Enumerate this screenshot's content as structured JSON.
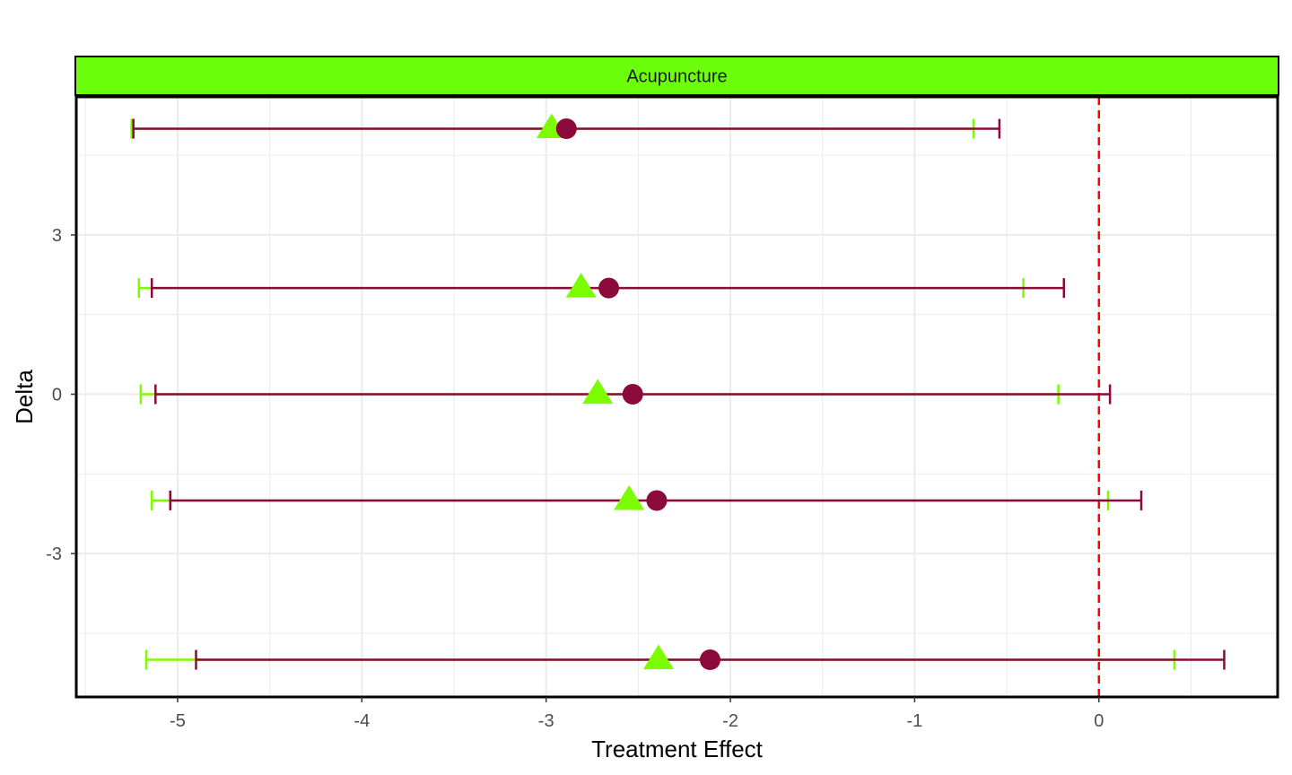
{
  "chart_data": {
    "type": "scatter",
    "panel_title": "Acupuncture",
    "xlabel": "Treatment Effect",
    "ylabel": "Delta",
    "xlim": [
      -5.55,
      0.97
    ],
    "ylim": [
      -5.7,
      5.6
    ],
    "x_ticks": [
      -5,
      -4,
      -3,
      -2,
      -1,
      0
    ],
    "x_tick_labels": [
      "-5",
      "-4",
      "-3",
      "-2",
      "-1",
      "0"
    ],
    "y_ticks": [
      -3,
      0,
      3
    ],
    "y_tick_labels": [
      "-3",
      "0",
      "3"
    ],
    "grid": true,
    "reference_line": {
      "x": 0,
      "style": "dashed",
      "color": "#ff0000"
    },
    "strip_color": "#6cff0c",
    "series": [
      {
        "marker": "triangle",
        "color": "#7cfc00",
        "points": [
          {
            "y": 5,
            "x": -2.97,
            "lower": -5.25,
            "upper": -0.68
          },
          {
            "y": 2,
            "x": -2.81,
            "lower": -5.21,
            "upper": -0.41
          },
          {
            "y": 0,
            "x": -2.72,
            "lower": -5.2,
            "upper": -0.22
          },
          {
            "y": -2,
            "x": -2.55,
            "lower": -5.14,
            "upper": 0.05
          },
          {
            "y": -5,
            "x": -2.39,
            "lower": -5.17,
            "upper": 0.41
          }
        ]
      },
      {
        "marker": "circle",
        "color": "#8b0a3b",
        "points": [
          {
            "y": 5,
            "x": -2.89,
            "lower": -5.24,
            "upper": -0.54
          },
          {
            "y": 2,
            "x": -2.66,
            "lower": -5.14,
            "upper": -0.19
          },
          {
            "y": 0,
            "x": -2.53,
            "lower": -5.12,
            "upper": 0.06
          },
          {
            "y": -2,
            "x": -2.4,
            "lower": -5.04,
            "upper": 0.23
          },
          {
            "y": -5,
            "x": -2.11,
            "lower": -4.9,
            "upper": 0.68
          }
        ]
      }
    ]
  }
}
